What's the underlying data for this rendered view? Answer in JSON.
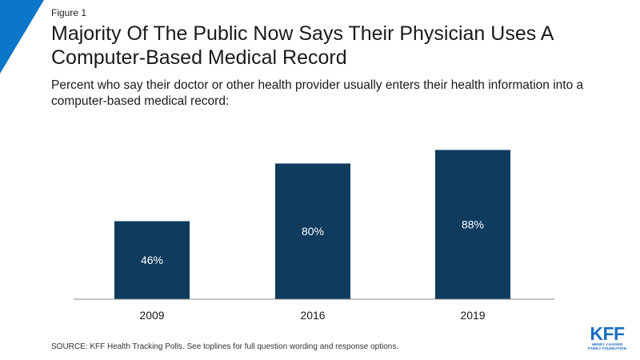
{
  "figure_label": "Figure 1",
  "brand_color": "#0a77c8",
  "logo": {
    "main": "KFF",
    "line1": "HENRY J KAISER",
    "line2": "FAMILY FOUNDATION"
  },
  "source": "SOURCE: KFF Health Tracking Polls. See toplines for full question wording and response options.",
  "chart_data": {
    "type": "bar",
    "title": "Majority Of The Public Now Says Their Physician Uses A Computer-Based Medical Record",
    "subtitle": "Percent who say their doctor or other health provider usually enters their health information into a computer-based medical record:",
    "categories": [
      "2009",
      "2016",
      "2019"
    ],
    "values": [
      46,
      80,
      88
    ],
    "value_labels": [
      "46%",
      "80%",
      "88%"
    ],
    "bar_color": "#0f3b5f",
    "label_color": "#ffffff",
    "ylim": [
      0,
      100
    ],
    "xlabel": "",
    "ylabel": "",
    "grid": false
  }
}
